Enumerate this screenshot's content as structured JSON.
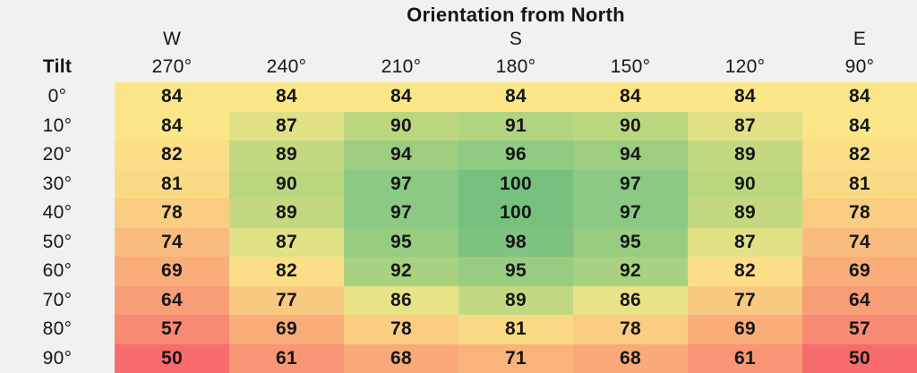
{
  "header": {
    "title": "Orientation from North",
    "tilt_label": "Tilt"
  },
  "colors": {
    "background": "#f1f1f0",
    "text": "#161616",
    "value_colors": {
      "50": "#f76c6c",
      "57": "#f78a73",
      "61": "#f89675",
      "64": "#f89e77",
      "68": "#f9aa78",
      "69": "#f9ad79",
      "71": "#f9b37b",
      "74": "#f9bc7e",
      "77": "#fac981",
      "78": "#facd82",
      "81": "#fbda85",
      "82": "#fbde86",
      "84": "#fce788",
      "86": "#e9e387",
      "87": "#e0e187",
      "89": "#c3d981",
      "90": "#bad780",
      "91": "#b1d480",
      "92": "#a8d27f",
      "94": "#9dce80",
      "95": "#97cc81",
      "96": "#91cb83",
      "97": "#8bc985",
      "98": "#7fc381",
      "100": "#77c17e"
    }
  },
  "chart_data": {
    "type": "heatmap",
    "title": "Orientation from North",
    "xlabel": "Orientation from North",
    "ylabel": "Tilt",
    "compass_labels": [
      "W",
      "",
      "",
      "S",
      "",
      "",
      "E"
    ],
    "columns": [
      "270°",
      "240°",
      "210°",
      "180°",
      "150°",
      "120°",
      "90°"
    ],
    "rows": [
      "0°",
      "10°",
      "20°",
      "30°",
      "40°",
      "50°",
      "60°",
      "70°",
      "80°",
      "90°"
    ],
    "values": [
      [
        84,
        84,
        84,
        84,
        84,
        84,
        84
      ],
      [
        84,
        87,
        90,
        91,
        90,
        87,
        84
      ],
      [
        82,
        89,
        94,
        96,
        94,
        89,
        82
      ],
      [
        81,
        90,
        97,
        100,
        97,
        90,
        81
      ],
      [
        78,
        89,
        97,
        100,
        97,
        89,
        78
      ],
      [
        74,
        87,
        95,
        98,
        95,
        87,
        74
      ],
      [
        69,
        82,
        92,
        95,
        92,
        82,
        69
      ],
      [
        64,
        77,
        86,
        89,
        86,
        77,
        64
      ],
      [
        57,
        69,
        78,
        81,
        78,
        69,
        57
      ],
      [
        50,
        61,
        68,
        71,
        68,
        61,
        50
      ]
    ],
    "value_range": [
      50,
      100
    ],
    "colormap": "red-yellow-green",
    "grid": false,
    "legend": "none"
  }
}
